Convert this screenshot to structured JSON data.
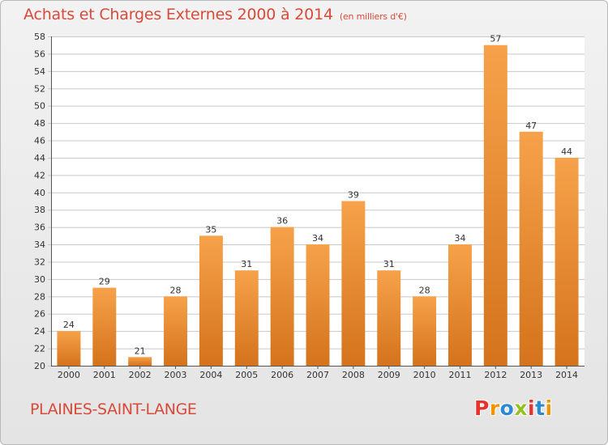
{
  "header": {
    "title": "Achats et Charges Externes 2000 à 2014",
    "unit": "(en milliers d'€)"
  },
  "footer": {
    "commune": "PLAINES-SAINT-LANGE",
    "logo_text": "Proxiti",
    "logo_colors": [
      "#e8322c",
      "#f29400",
      "#2a8ad4",
      "#95c11f",
      "#e8322c",
      "#2a8ad4",
      "#f29400"
    ]
  },
  "colors": {
    "text_accent": "#d84a3a",
    "bar_light": "#f6a24a",
    "bar_dark": "#d4731c",
    "grid": "#c8c8c8",
    "axis": "#555555"
  },
  "chart_data": {
    "type": "bar",
    "title": "Achats et Charges Externes 2000 à 2014",
    "subtitle": "(en milliers d'€)",
    "xlabel": "",
    "ylabel": "",
    "categories": [
      "2000",
      "2001",
      "2002",
      "2003",
      "2004",
      "2005",
      "2006",
      "2007",
      "2008",
      "2009",
      "2010",
      "2011",
      "2012",
      "2013",
      "2014"
    ],
    "values": [
      24,
      29,
      21,
      28,
      35,
      31,
      36,
      34,
      39,
      31,
      28,
      34,
      57,
      47,
      44
    ],
    "ylim": [
      20,
      58
    ],
    "yticks": [
      20,
      22,
      24,
      26,
      28,
      30,
      32,
      34,
      36,
      38,
      40,
      42,
      44,
      46,
      48,
      50,
      52,
      54,
      56,
      58
    ],
    "grid": true,
    "data_labels": true
  }
}
